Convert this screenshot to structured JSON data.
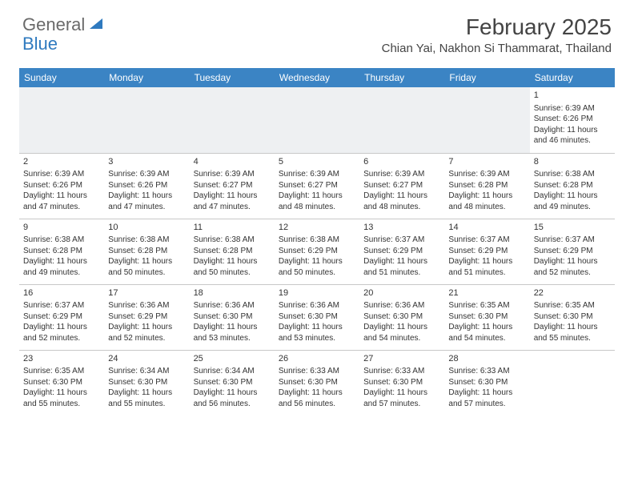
{
  "brand": {
    "general": "General",
    "blue": "Blue"
  },
  "title": "February 2025",
  "location": "Chian Yai, Nakhon Si Thammarat, Thailand",
  "colors": {
    "header_bg": "#3b84c4",
    "header_text": "#ffffff",
    "border": "#c8c8c8",
    "text": "#333333",
    "logo_gray": "#6a6a6a",
    "logo_blue": "#2f7abf",
    "empty_bg": "#eef0f2"
  },
  "weekdays": [
    "Sunday",
    "Monday",
    "Tuesday",
    "Wednesday",
    "Thursday",
    "Friday",
    "Saturday"
  ],
  "weeks": [
    [
      null,
      null,
      null,
      null,
      null,
      null,
      {
        "n": "1",
        "sr": "6:39 AM",
        "ss": "6:26 PM",
        "dl": "11 hours and 46 minutes."
      }
    ],
    [
      {
        "n": "2",
        "sr": "6:39 AM",
        "ss": "6:26 PM",
        "dl": "11 hours and 47 minutes."
      },
      {
        "n": "3",
        "sr": "6:39 AM",
        "ss": "6:26 PM",
        "dl": "11 hours and 47 minutes."
      },
      {
        "n": "4",
        "sr": "6:39 AM",
        "ss": "6:27 PM",
        "dl": "11 hours and 47 minutes."
      },
      {
        "n": "5",
        "sr": "6:39 AM",
        "ss": "6:27 PM",
        "dl": "11 hours and 48 minutes."
      },
      {
        "n": "6",
        "sr": "6:39 AM",
        "ss": "6:27 PM",
        "dl": "11 hours and 48 minutes."
      },
      {
        "n": "7",
        "sr": "6:39 AM",
        "ss": "6:28 PM",
        "dl": "11 hours and 48 minutes."
      },
      {
        "n": "8",
        "sr": "6:38 AM",
        "ss": "6:28 PM",
        "dl": "11 hours and 49 minutes."
      }
    ],
    [
      {
        "n": "9",
        "sr": "6:38 AM",
        "ss": "6:28 PM",
        "dl": "11 hours and 49 minutes."
      },
      {
        "n": "10",
        "sr": "6:38 AM",
        "ss": "6:28 PM",
        "dl": "11 hours and 50 minutes."
      },
      {
        "n": "11",
        "sr": "6:38 AM",
        "ss": "6:28 PM",
        "dl": "11 hours and 50 minutes."
      },
      {
        "n": "12",
        "sr": "6:38 AM",
        "ss": "6:29 PM",
        "dl": "11 hours and 50 minutes."
      },
      {
        "n": "13",
        "sr": "6:37 AM",
        "ss": "6:29 PM",
        "dl": "11 hours and 51 minutes."
      },
      {
        "n": "14",
        "sr": "6:37 AM",
        "ss": "6:29 PM",
        "dl": "11 hours and 51 minutes."
      },
      {
        "n": "15",
        "sr": "6:37 AM",
        "ss": "6:29 PM",
        "dl": "11 hours and 52 minutes."
      }
    ],
    [
      {
        "n": "16",
        "sr": "6:37 AM",
        "ss": "6:29 PM",
        "dl": "11 hours and 52 minutes."
      },
      {
        "n": "17",
        "sr": "6:36 AM",
        "ss": "6:29 PM",
        "dl": "11 hours and 52 minutes."
      },
      {
        "n": "18",
        "sr": "6:36 AM",
        "ss": "6:30 PM",
        "dl": "11 hours and 53 minutes."
      },
      {
        "n": "19",
        "sr": "6:36 AM",
        "ss": "6:30 PM",
        "dl": "11 hours and 53 minutes."
      },
      {
        "n": "20",
        "sr": "6:36 AM",
        "ss": "6:30 PM",
        "dl": "11 hours and 54 minutes."
      },
      {
        "n": "21",
        "sr": "6:35 AM",
        "ss": "6:30 PM",
        "dl": "11 hours and 54 minutes."
      },
      {
        "n": "22",
        "sr": "6:35 AM",
        "ss": "6:30 PM",
        "dl": "11 hours and 55 minutes."
      }
    ],
    [
      {
        "n": "23",
        "sr": "6:35 AM",
        "ss": "6:30 PM",
        "dl": "11 hours and 55 minutes."
      },
      {
        "n": "24",
        "sr": "6:34 AM",
        "ss": "6:30 PM",
        "dl": "11 hours and 55 minutes."
      },
      {
        "n": "25",
        "sr": "6:34 AM",
        "ss": "6:30 PM",
        "dl": "11 hours and 56 minutes."
      },
      {
        "n": "26",
        "sr": "6:33 AM",
        "ss": "6:30 PM",
        "dl": "11 hours and 56 minutes."
      },
      {
        "n": "27",
        "sr": "6:33 AM",
        "ss": "6:30 PM",
        "dl": "11 hours and 57 minutes."
      },
      {
        "n": "28",
        "sr": "6:33 AM",
        "ss": "6:30 PM",
        "dl": "11 hours and 57 minutes."
      },
      null
    ]
  ],
  "labels": {
    "sunrise": "Sunrise:",
    "sunset": "Sunset:",
    "daylight": "Daylight:"
  }
}
